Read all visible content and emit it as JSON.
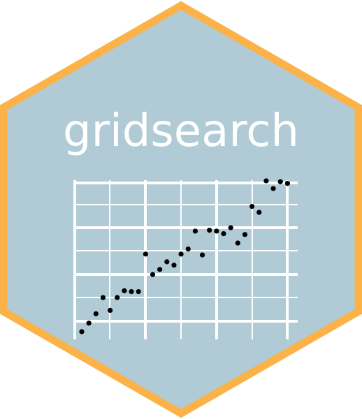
{
  "logo": {
    "title": "gridsearch",
    "colors": {
      "hex_fill": "#b0cbd6",
      "hex_border": "#fbb248",
      "grid_line": "#ffffff",
      "point": "#000000",
      "title_text": "#ffffff"
    }
  },
  "chart_data": {
    "type": "scatter",
    "grid": true,
    "xlim": [
      0,
      30
    ],
    "ylim": [
      0,
      22
    ],
    "x": [
      0,
      1,
      2,
      3,
      4,
      5,
      6,
      7,
      8,
      9,
      10,
      11,
      12,
      13,
      14,
      15,
      16,
      17,
      18,
      19,
      20,
      21,
      22,
      23,
      24,
      25,
      26,
      27,
      28,
      29
    ],
    "y": [
      0.5,
      1.5,
      2.6,
      4.5,
      3,
      4.5,
      5.3,
      5.2,
      5.2,
      9.6,
      7.2,
      7.8,
      8.7,
      8.3,
      9.6,
      10.2,
      12.3,
      9.5,
      12.4,
      12.3,
      12,
      12.7,
      10.9,
      11.9,
      15.2,
      14.5,
      18.2,
      17.3,
      18.1,
      17.9
    ]
  }
}
